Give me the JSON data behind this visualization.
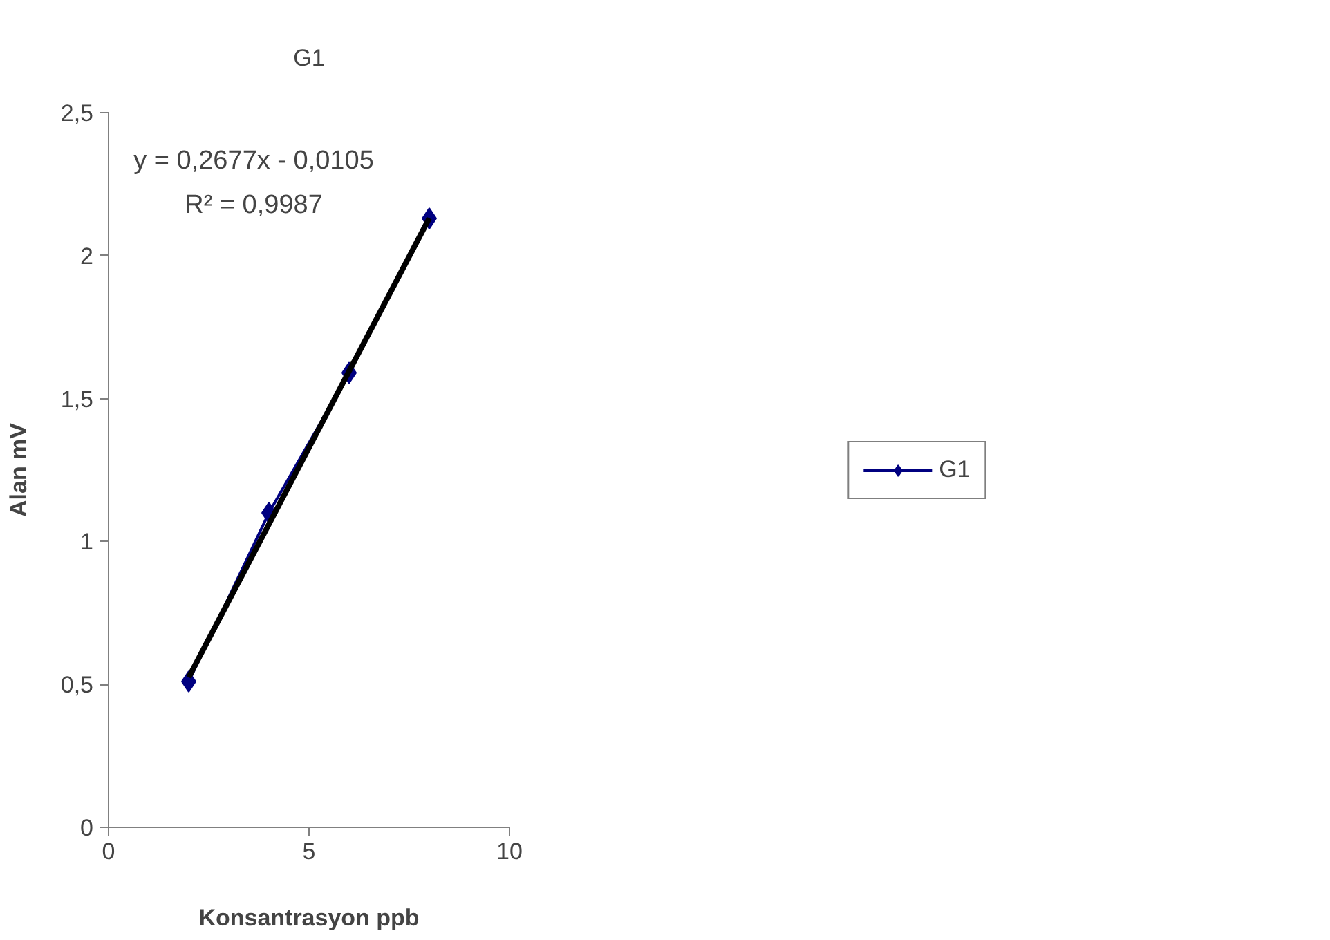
{
  "chart_data": {
    "type": "line",
    "title": "G1",
    "xlabel": "Konsantrasyon ppb",
    "ylabel": "Alan mV",
    "x": [
      2,
      4,
      6,
      8
    ],
    "series": [
      {
        "name": "G1",
        "color": "#000080",
        "values": [
          0.51,
          1.1,
          1.59,
          2.13
        ],
        "marker": "diamond"
      },
      {
        "color": "#000000",
        "x": [
          2,
          8
        ],
        "values": [
          0.525,
          2.131
        ],
        "marker": "none"
      }
    ],
    "xlim": [
      0,
      10
    ],
    "xticks": [
      0,
      5,
      10
    ],
    "ylim": [
      0,
      2.5
    ],
    "yticks": [
      0,
      {
        "value": 0.5,
        "label": "0,5"
      },
      1,
      {
        "value": 1.5,
        "label": "1,5"
      },
      2,
      {
        "value": 2.5,
        "label": "2,5"
      }
    ],
    "annotations": [
      "y = 0,2677x - 0,0105",
      "R² = 0,9987"
    ],
    "grid": false,
    "legend": "right"
  }
}
